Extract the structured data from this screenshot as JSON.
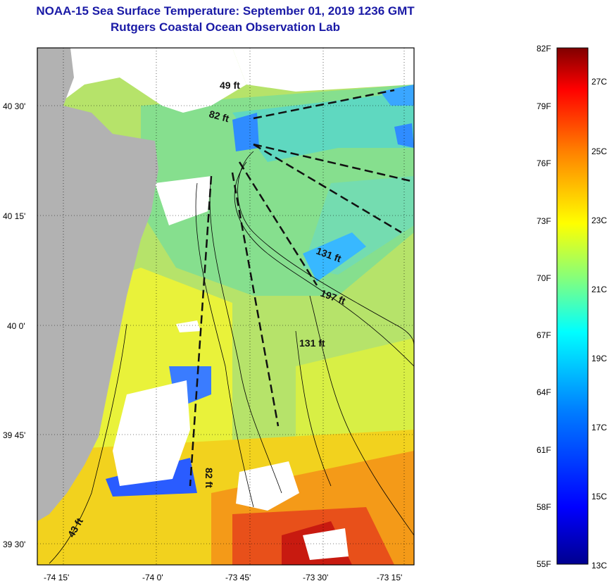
{
  "header": {
    "title": "NOAA-15 Sea Surface Temperature:  September 01, 2019 1236 GMT",
    "subtitle": "Rutgers Coastal Ocean Observation Lab"
  },
  "axes": {
    "x_ticks": [
      "-74 15'",
      "-74 0'",
      "-73 45'",
      "-73 30'",
      "-73 15'"
    ],
    "y_ticks": [
      "40 30'",
      "40 15'",
      "40 0'",
      "39 45'",
      "39 30'"
    ]
  },
  "depth_labels": [
    "49 ft",
    "82 ft",
    "131 ft",
    "197 ft",
    "131 ft",
    "82 ft",
    "43 ft"
  ],
  "colorbar": {
    "fahrenheit": [
      "82F",
      "79F",
      "76F",
      "73F",
      "70F",
      "67F",
      "64F",
      "61F",
      "58F",
      "55F"
    ],
    "celsius": [
      "27C",
      "25C",
      "23C",
      "21C",
      "19C",
      "17C",
      "15C",
      "13C"
    ],
    "min_f": 55,
    "max_f": 82,
    "stops": [
      "#00008f",
      "#0000ff",
      "#0080ff",
      "#00ffff",
      "#80ff80",
      "#ffff00",
      "#ff8000",
      "#ff0000",
      "#800000"
    ]
  },
  "colors": {
    "land": "#b2b2b2",
    "cloud": "#ffffff",
    "title": "#1a1aa6"
  }
}
